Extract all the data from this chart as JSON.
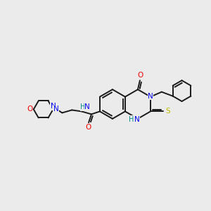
{
  "background_color": "#ebebeb",
  "bond_color": "#1a1a1a",
  "atom_colors": {
    "N": "#0000ee",
    "O": "#ee0000",
    "S": "#bbbb00",
    "H_N": "#008b8b",
    "C": "#1a1a1a"
  },
  "figsize": [
    3.0,
    3.0
  ],
  "dpi": 100
}
